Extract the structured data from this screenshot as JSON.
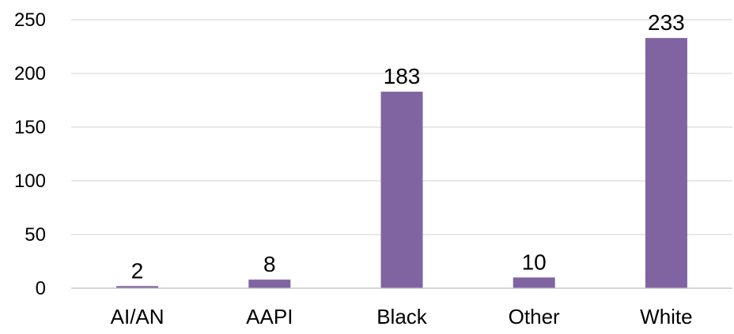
{
  "chart_data": {
    "type": "bar",
    "categories": [
      "AI/AN",
      "AAPI",
      "Black",
      "Other",
      "White"
    ],
    "values": [
      2,
      8,
      183,
      10,
      233
    ],
    "data_labels": [
      "2",
      "8",
      "183",
      "10",
      "233"
    ],
    "title": "",
    "xlabel": "",
    "ylabel": "",
    "ylim": [
      0,
      250
    ],
    "yticks": [
      0,
      50,
      100,
      150,
      200,
      250
    ],
    "ytick_labels": [
      "0",
      "50",
      "100",
      "150",
      "200",
      "250"
    ],
    "grid": true,
    "legend": "none",
    "bar_color": "#8064a2"
  }
}
